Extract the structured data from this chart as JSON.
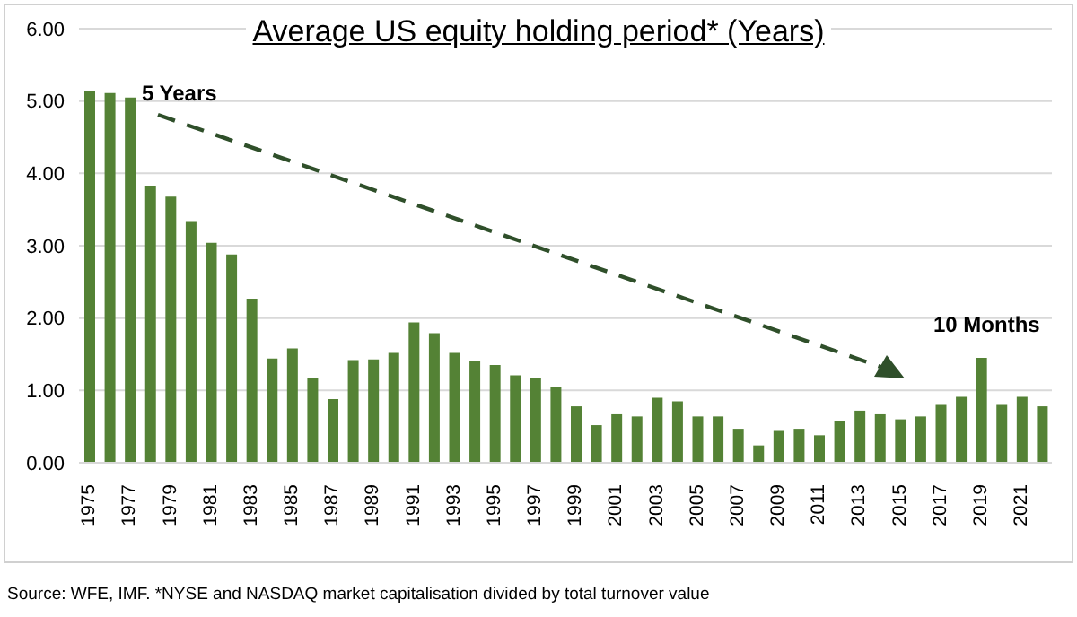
{
  "chart_data": {
    "type": "bar",
    "title": "Average US equity holding period* (Years)",
    "categories": [
      "1975",
      null,
      "1977",
      null,
      "1979",
      null,
      "1981",
      null,
      "1983",
      null,
      "1985",
      null,
      "1987",
      null,
      "1989",
      null,
      "1991",
      null,
      "1993",
      null,
      "1995",
      null,
      "1997",
      null,
      "1999",
      null,
      "2001",
      null,
      "2003",
      null,
      "2005",
      null,
      "2007",
      null,
      "2009",
      null,
      "2011",
      null,
      "2013",
      null,
      "2015",
      null,
      "2017",
      null,
      "2019",
      null,
      "2021",
      null
    ],
    "values": [
      5.14,
      5.11,
      5.05,
      3.83,
      3.68,
      3.34,
      3.04,
      2.88,
      2.27,
      1.44,
      1.58,
      1.17,
      0.88,
      1.42,
      1.43,
      1.52,
      1.94,
      1.79,
      1.52,
      1.41,
      1.35,
      1.21,
      1.17,
      1.05,
      0.78,
      0.52,
      0.67,
      0.64,
      0.9,
      0.85,
      0.64,
      0.64,
      0.47,
      0.24,
      0.44,
      0.47,
      0.38,
      0.58,
      0.72,
      0.67,
      0.6,
      0.64,
      0.8,
      0.91,
      1.45,
      0.8,
      0.91,
      0.78
    ],
    "color": "#548235",
    "ylim": [
      0,
      6
    ],
    "yticks": [
      {
        "value": 0,
        "label": "0.00"
      },
      {
        "value": 1,
        "label": "1.00"
      },
      {
        "value": 2,
        "label": "2.00"
      },
      {
        "value": 3,
        "label": "3.00"
      },
      {
        "value": 4,
        "label": "4.00"
      },
      {
        "value": 5,
        "label": "5.00"
      },
      {
        "value": 6,
        "label": "6.00"
      }
    ],
    "grid": "y",
    "annotations": [
      "5 Years",
      "10 Months",
      "Source: WFE, IMF. *NYSE and NASDAQ market capitalisation divided by total turnover value"
    ]
  }
}
